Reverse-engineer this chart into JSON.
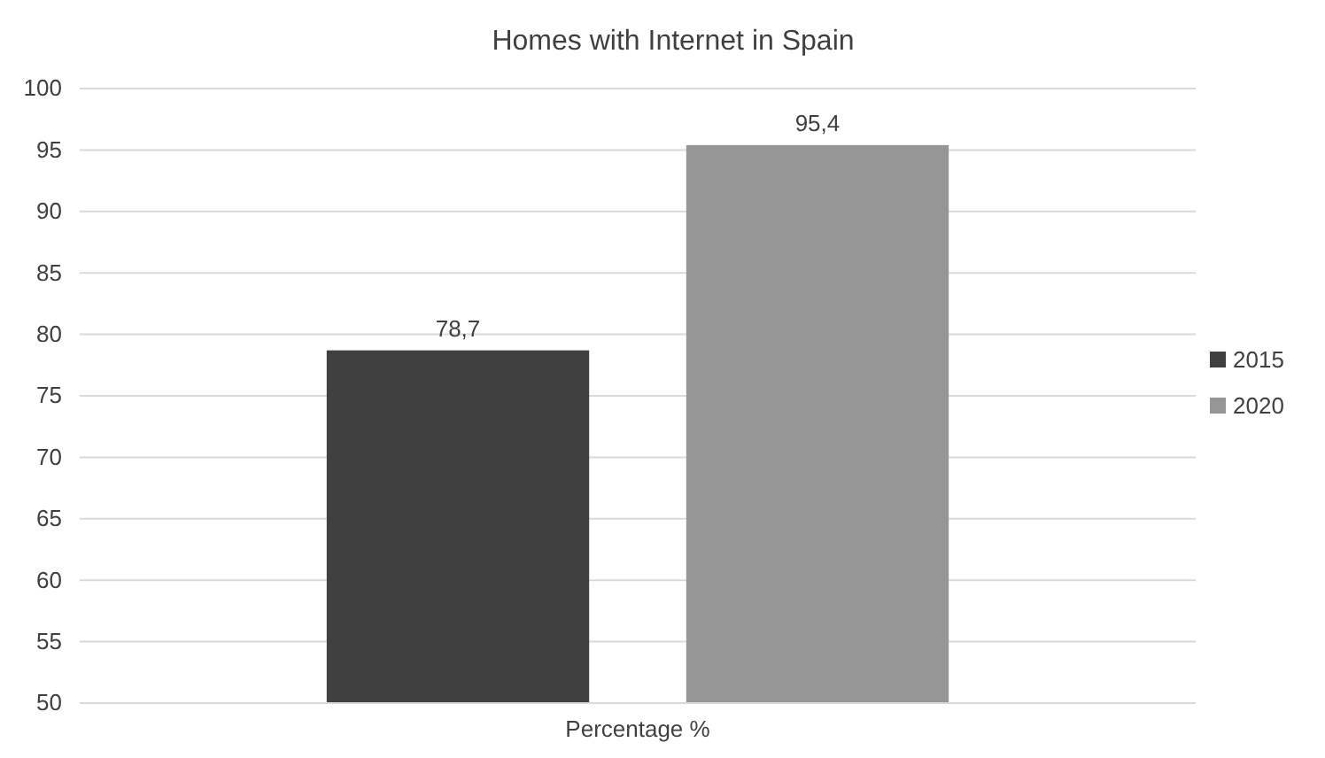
{
  "chart_data": {
    "type": "bar",
    "title": "Homes with Internet in Spain",
    "categories": [
      "Percentage %"
    ],
    "series": [
      {
        "name": "2015",
        "color": "#404040",
        "values": [
          78.7
        ],
        "value_labels": [
          "78,7"
        ]
      },
      {
        "name": "2020",
        "color": "#969696",
        "values": [
          95.4
        ],
        "value_labels": [
          "95,4"
        ]
      }
    ],
    "ylim": [
      50,
      100
    ],
    "yticks": [
      50,
      55,
      60,
      65,
      70,
      75,
      80,
      85,
      90,
      95,
      100
    ],
    "grid": "y",
    "legend": "right"
  }
}
